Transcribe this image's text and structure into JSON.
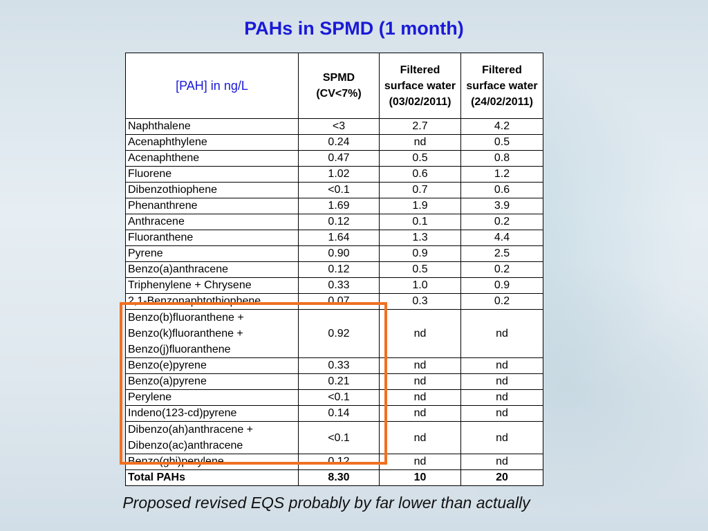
{
  "title": "PAHs in SPMD (1 month)",
  "table": {
    "headers": [
      "[PAH] in ng/L",
      "SPMD (CV<7%)",
      "Filtered surface water (03/02/2011)",
      "Filtered surface water (24/02/2011)"
    ],
    "rows": [
      [
        "Naphthalene",
        "<3",
        "2.7",
        "4.2"
      ],
      [
        "Acenaphthylene",
        "0.24",
        "nd",
        "0.5"
      ],
      [
        "Acenaphthene",
        "0.47",
        "0.5",
        "0.8"
      ],
      [
        "Fluorene",
        "1.02",
        "0.6",
        "1.2"
      ],
      [
        "Dibenzothiophene",
        "<0.1",
        "0.7",
        "0.6"
      ],
      [
        "Phenanthrene",
        "1.69",
        "1.9",
        "3.9"
      ],
      [
        "Anthracene",
        "0.12",
        "0.1",
        "0.2"
      ],
      [
        "Fluoranthene",
        "1.64",
        "1.3",
        "4.4"
      ],
      [
        "Pyrene",
        "0.90",
        "0.9",
        "2.5"
      ],
      [
        "Benzo(a)anthracene",
        "0.12",
        "0.5",
        "0.2"
      ],
      [
        "Triphenylene + Chrysene",
        "0.33",
        "1.0",
        "0.9"
      ],
      [
        "2,1-Benzonaphtothiophene",
        "0.07",
        "0.3",
        "0.2"
      ],
      [
        "Benzo(b)fluoranthene + Benzo(k)fluoranthene + Benzo(j)fluoranthene",
        "0.92",
        "nd",
        "nd"
      ],
      [
        "Benzo(e)pyrene",
        "0.33",
        "nd",
        "nd"
      ],
      [
        "Benzo(a)pyrene",
        "0.21",
        "nd",
        "nd"
      ],
      [
        "Perylene",
        "<0.1",
        "nd",
        "nd"
      ],
      [
        "Indeno(123-cd)pyrene",
        "0.14",
        "nd",
        "nd"
      ],
      [
        "Dibenzo(ah)anthracene + Dibenzo(ac)anthracene",
        "<0.1",
        "nd",
        "nd"
      ],
      [
        "Benzo(ghi)perylene",
        "0.12",
        "nd",
        "nd"
      ]
    ],
    "total": [
      "Total PAHs",
      "8.30",
      "10",
      "20"
    ]
  },
  "highlight_color": "#f07020",
  "title_color": "#1a1ad6",
  "footnote": "Proposed revised EQS probably by far lower than actually"
}
